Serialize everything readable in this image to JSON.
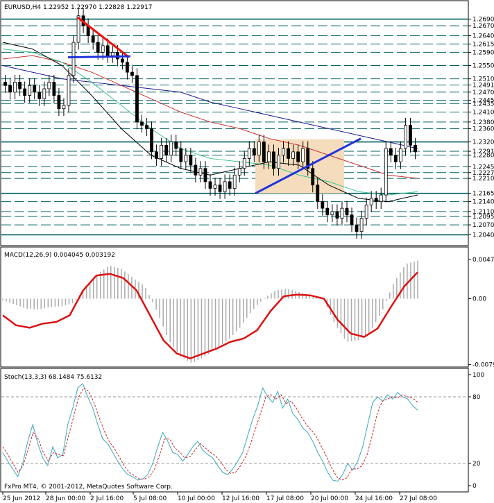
{
  "chart_data": [
    {
      "type": "candlestick",
      "title": "EURUSD,H4  1.22952 1.22970 1.22828 1.22917",
      "symbol": "EURUSD",
      "timeframe": "H4",
      "ohlc_header": "1.22952 1.22970 1.22828 1.22917",
      "ylim": [
        1.202,
        1.271
      ],
      "x_ticks": [
        "25 Jun 2012",
        "28 Jun 00:00",
        "2 Jul 16:00",
        "5 Jul 08:00",
        "10 Jul 00:00",
        "12 Jul 16:00",
        "17 Jul 08:00",
        "20 Jul 00:00",
        "24 Jul 16:00",
        "27 Jul 08:00"
      ],
      "y_ticks": [
        "1.26900",
        "1.26700",
        "1.26400",
        "1.26150",
        "1.25900",
        "1.25500",
        "1.25100",
        "1.24915",
        "1.24700",
        "1.24450",
        "1.24355",
        "1.24100",
        "1.23800",
        "1.23600",
        "1.23200",
        "1.22917",
        "1.22800",
        "1.22450",
        "1.22275",
        "1.22100",
        "1.21650",
        "1.21400",
        "1.21100",
        "1.20955",
        "1.20700",
        "1.20400"
      ],
      "y_tick_values": [
        1.269,
        1.267,
        1.264,
        1.2615,
        1.259,
        1.255,
        1.251,
        1.24915,
        1.247,
        1.2445,
        1.24355,
        1.241,
        1.238,
        1.236,
        1.232,
        1.22917,
        1.228,
        1.2245,
        1.22275,
        1.221,
        1.2165,
        1.214,
        1.211,
        1.20955,
        1.207,
        1.204
      ],
      "highlighted_levels": [
        1.269,
        1.232,
        1.2165,
        1.204
      ],
      "close_path": [
        1.249,
        1.247,
        1.25,
        1.248,
        1.246,
        1.249,
        1.247,
        1.245,
        1.248,
        1.25,
        1.246,
        1.242,
        1.243,
        1.252,
        1.262,
        1.27,
        1.267,
        1.264,
        1.262,
        1.259,
        1.261,
        1.258,
        1.259,
        1.257,
        1.256,
        1.253,
        1.252,
        1.238,
        1.237,
        1.236,
        1.229,
        1.227,
        1.231,
        1.228,
        1.232,
        1.23,
        1.226,
        1.228,
        1.225,
        1.222,
        1.224,
        1.22,
        1.218,
        1.219,
        1.217,
        1.22,
        1.218,
        1.222,
        1.224,
        1.227,
        1.23,
        1.228,
        1.232,
        1.226,
        1.229,
        1.224,
        1.228,
        1.23,
        1.227,
        1.229,
        1.226,
        1.23,
        1.224,
        1.219,
        1.214,
        1.212,
        1.21,
        1.211,
        1.209,
        1.212,
        1.21,
        1.207,
        1.205,
        1.209,
        1.213,
        1.215,
        1.214,
        1.216,
        1.23,
        1.228,
        1.226,
        1.23,
        1.237,
        1.231,
        1.229
      ],
      "ma_series": [
        {
          "color": "#1a1a8c",
          "values": [
            1.255,
            1.253,
            1.251,
            1.25,
            1.249,
            1.248,
            1.247,
            1.244,
            1.242,
            1.24,
            1.238,
            1.236,
            1.234,
            1.232,
            1.23
          ]
        },
        {
          "color": "#c83232",
          "values": [
            1.257,
            1.258,
            1.256,
            1.253,
            1.249,
            1.245,
            1.241,
            1.238,
            1.236,
            1.233,
            1.231,
            1.228,
            1.225,
            1.222,
            1.221
          ]
        },
        {
          "color": "#3cc38c",
          "values": [
            1.26,
            1.259,
            1.256,
            1.25,
            1.243,
            1.236,
            1.23,
            1.227,
            1.226,
            1.225,
            1.222,
            1.22,
            1.217,
            1.216,
            1.217
          ]
        },
        {
          "color": "#000000",
          "values": [
            1.262,
            1.26,
            1.255,
            1.246,
            1.236,
            1.228,
            1.224,
            1.222,
            1.224,
            1.226,
            1.225,
            1.219,
            1.215,
            1.214,
            1.216
          ]
        }
      ]
    },
    {
      "type": "line",
      "title": "MACD(12,26,9) 0.004045 0.003192",
      "ylim": [
        -0.0079,
        0.0049
      ],
      "y_ticks": [
        "0.00473",
        "0.00",
        "-0.00795"
      ],
      "y_tick_values": [
        0.00473,
        0.0,
        -0.00795
      ],
      "histogram": [
        -0.0002,
        -0.0007,
        -0.0012,
        -0.0013,
        -0.001,
        -0.0009,
        -0.0005,
        0.0015,
        0.003,
        0.004,
        0.0036,
        0.0025,
        0.0015,
        -0.0015,
        -0.005,
        -0.007,
        -0.0078,
        -0.007,
        -0.006,
        -0.005,
        -0.0035,
        -0.0015,
        0.0,
        0.001,
        0.0012,
        0.0008,
        0.0004,
        0.0,
        -0.003,
        -0.0052,
        -0.005,
        -0.004,
        -0.0015,
        0.002,
        0.0042,
        0.0046
      ],
      "signal": [
        -0.002,
        -0.0032,
        -0.0035,
        -0.003,
        -0.0028,
        -0.002,
        0.001,
        0.0028,
        0.003,
        0.0025,
        0.001,
        -0.002,
        -0.005,
        -0.0066,
        -0.0072,
        -0.0066,
        -0.006,
        -0.0052,
        -0.0048,
        -0.0038,
        -0.0015,
        0.0003,
        0.0005,
        0.0004,
        0.0,
        -0.0025,
        -0.0042,
        -0.0046,
        -0.0036,
        -0.001,
        0.0015,
        0.0032
      ]
    },
    {
      "type": "line",
      "title": "Stoch(13,3,3) 68.1484 75.6132",
      "ylim": [
        0,
        100
      ],
      "y_ticks": [
        "100",
        "80",
        "20",
        "0"
      ],
      "y_tick_values": [
        100,
        80,
        20,
        0
      ],
      "series": [
        {
          "color": "#3aa8b8",
          "values": [
            30,
            22,
            15,
            8,
            20,
            40,
            55,
            38,
            25,
            18,
            35,
            25,
            28,
            55,
            70,
            88,
            92,
            80,
            70,
            55,
            42,
            38,
            30,
            22,
            15,
            10,
            8,
            5,
            6,
            10,
            20,
            35,
            48,
            40,
            30,
            28,
            22,
            28,
            35,
            40,
            32,
            28,
            25,
            18,
            12,
            10,
            15,
            22,
            30,
            45,
            60,
            72,
            88,
            80,
            75,
            85,
            70,
            78,
            65,
            60,
            52,
            48,
            40,
            30,
            22,
            12,
            5,
            4,
            10,
            20,
            14,
            22,
            35,
            55,
            75,
            80,
            76,
            82,
            78,
            84,
            80,
            78,
            72,
            68
          ]
        },
        {
          "color": "#cc2222",
          "values": [
            35,
            28,
            20,
            12,
            18,
            32,
            48,
            42,
            30,
            22,
            30,
            28,
            27,
            45,
            62,
            80,
            88,
            85,
            75,
            62,
            50,
            40,
            34,
            26,
            18,
            12,
            9,
            6,
            6,
            8,
            15,
            28,
            42,
            42,
            34,
            30,
            25,
            26,
            32,
            38,
            34,
            30,
            27,
            22,
            15,
            11,
            12,
            18,
            26,
            38,
            52,
            66,
            80,
            82,
            78,
            82,
            74,
            76,
            70,
            62,
            55,
            50,
            44,
            35,
            26,
            16,
            8,
            5,
            7,
            15,
            15,
            18,
            28,
            45,
            65,
            76,
            78,
            80,
            79,
            82,
            80,
            79,
            75
          ]
        }
      ]
    }
  ],
  "copyright": "FxPro MT4, © 2001-2012, MetaQuotes Software Corp.",
  "colors": {
    "bg": "#ffffff",
    "grid": "#006060",
    "candle": "#000000",
    "macd_signal": "#dd1111",
    "zone_fill": "#f5dcbc",
    "trend_red": "#ee1111",
    "trend_blue": "#2233dd"
  }
}
